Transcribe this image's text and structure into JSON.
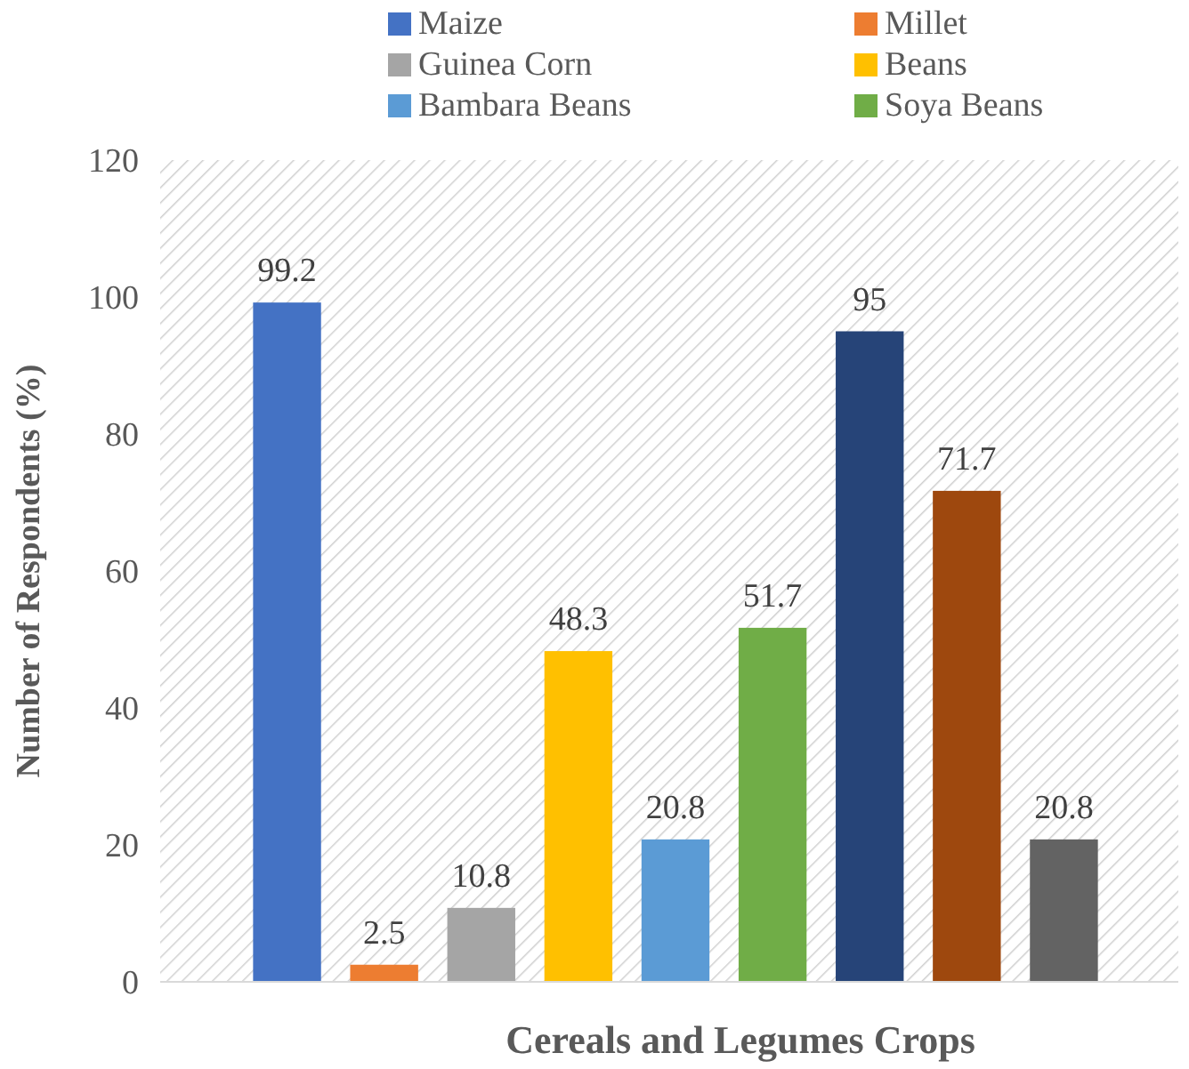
{
  "chart_data": {
    "type": "bar",
    "xlabel": "Cereals and Legumes Crops",
    "ylabel": "Number of Respondents (%)",
    "categories": [
      null
    ],
    "series": [
      {
        "name": "Maize",
        "color": "#4472c4",
        "values": [
          99.2
        ]
      },
      {
        "name": "Millet",
        "color": "#ed7d31",
        "values": [
          2.5
        ]
      },
      {
        "name": "Guinea Corn",
        "color": "#a5a5a5",
        "values": [
          10.8
        ]
      },
      {
        "name": "Beans",
        "color": "#ffc000",
        "values": [
          48.3
        ]
      },
      {
        "name": "Bambara Beans",
        "color": "#5b9bd5",
        "values": [
          20.8
        ]
      },
      {
        "name": "Soya Beans",
        "color": "#70ad47",
        "values": [
          51.7
        ]
      },
      {
        "color": "#264478",
        "values": [
          95
        ]
      },
      {
        "color": "#9e480e",
        "values": [
          71.7
        ]
      },
      {
        "color": "#636363",
        "values": [
          20.8
        ]
      }
    ],
    "ylim": [
      0,
      120
    ],
    "yticks": [
      0,
      20,
      40,
      60,
      80,
      100,
      120
    ],
    "grid": false,
    "legend": "top",
    "data_labels": true
  }
}
